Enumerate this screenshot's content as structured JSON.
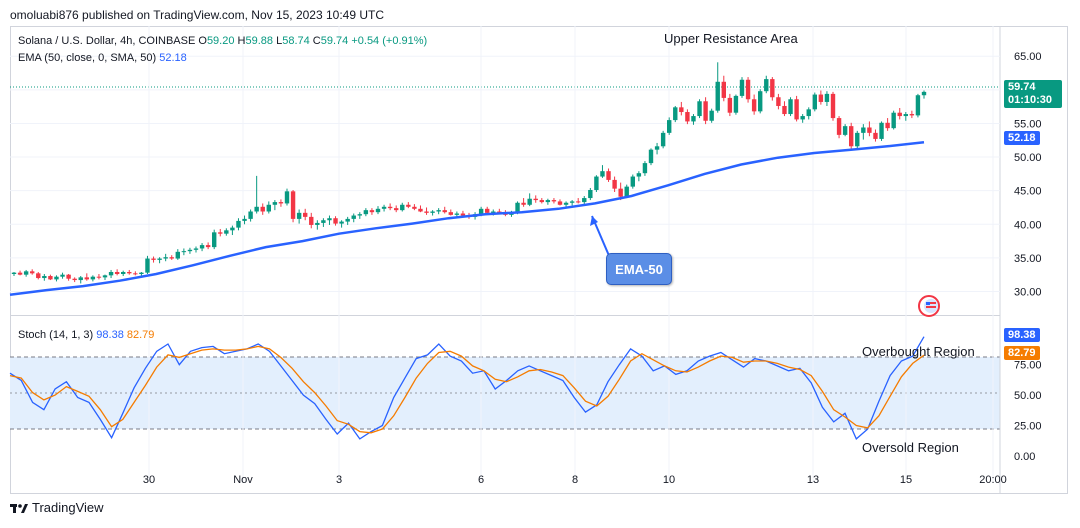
{
  "header": {
    "published": "omoluabi876 published on TradingView.com, Nov 15, 2023 10:49 UTC"
  },
  "symbol": {
    "name": "Solana / U.S. Dollar, 4h, COINBASE",
    "o_label": "O",
    "o": "59.20",
    "h_label": "H",
    "h": "59.88",
    "l_label": "L",
    "l": "58.74",
    "c_label": "C",
    "c": "59.74",
    "change": "+0.54 (+0.91%)"
  },
  "ema_legend": {
    "label": "EMA (50, close, 0, SMA, 50)",
    "value": "52.18"
  },
  "stoch_legend": {
    "label": "Stoch (14, 1, 3)",
    "k": "98.38",
    "d": "82.79"
  },
  "annotations": {
    "upper": "Upper Resistance Area",
    "ema_box": "EMA-50",
    "overbought": "Overbought Region",
    "oversold": "Oversold Region"
  },
  "price_tags": {
    "price": "59.74",
    "countdown": "01:10:30",
    "ema": "52.18"
  },
  "stoch_tags": {
    "k": "98.38",
    "d": "82.79"
  },
  "brand": "TradingView",
  "colors": {
    "up": "#089981",
    "down": "#f23645",
    "ema": "#2962ff",
    "k": "#2962ff",
    "d": "#f57c00",
    "band": "#e3effd"
  },
  "chart_data": [
    {
      "type": "candlestick",
      "title": "Solana / U.S. Dollar, 4h, COINBASE",
      "ylim": [
        26.5,
        69.5
      ],
      "y_ticks": [
        "65.00",
        "60.00",
        "55.00",
        "50.00",
        "45.00",
        "40.00",
        "35.00",
        "30.00"
      ],
      "x_ticks": [
        "30",
        "Nov",
        "3",
        "6",
        "8",
        "10",
        "13",
        "15",
        "20:00"
      ],
      "candles": [
        [
          32.6,
          32.9,
          32.3,
          32.8
        ],
        [
          32.8,
          33.1,
          32.4,
          32.5
        ],
        [
          32.5,
          33.2,
          32.2,
          33.0
        ],
        [
          33.0,
          33.3,
          32.5,
          32.7
        ],
        [
          32.7,
          32.9,
          31.8,
          32.0
        ],
        [
          32.0,
          32.6,
          31.6,
          32.3
        ],
        [
          32.3,
          32.5,
          31.7,
          31.8
        ],
        [
          31.8,
          32.4,
          31.5,
          32.2
        ],
        [
          32.2,
          32.8,
          31.9,
          32.5
        ],
        [
          32.5,
          32.6,
          31.6,
          31.9
        ],
        [
          31.9,
          32.1,
          31.4,
          31.7
        ],
        [
          31.7,
          32.3,
          31.2,
          32.1
        ],
        [
          32.1,
          32.7,
          31.6,
          31.8
        ],
        [
          31.8,
          32.4,
          31.5,
          32.2
        ],
        [
          32.2,
          32.6,
          31.8,
          32.1
        ],
        [
          32.1,
          32.5,
          31.7,
          32.4
        ],
        [
          32.4,
          33.2,
          32.0,
          32.9
        ],
        [
          32.9,
          33.3,
          32.4,
          32.6
        ],
        [
          32.6,
          33.1,
          32.3,
          32.9
        ],
        [
          32.9,
          33.2,
          32.5,
          32.7
        ],
        [
          32.7,
          33.0,
          32.4,
          32.6
        ],
        [
          32.6,
          32.9,
          32.3,
          32.8
        ],
        [
          32.8,
          35.3,
          32.6,
          34.9
        ],
        [
          34.9,
          35.2,
          34.3,
          34.7
        ],
        [
          34.7,
          35.1,
          34.2,
          34.9
        ],
        [
          34.9,
          35.6,
          34.5,
          35.1
        ],
        [
          35.1,
          35.4,
          34.7,
          34.9
        ],
        [
          34.9,
          36.3,
          34.7,
          35.9
        ],
        [
          35.9,
          36.4,
          35.4,
          36.0
        ],
        [
          36.0,
          36.5,
          35.6,
          36.2
        ],
        [
          36.2,
          36.7,
          35.8,
          36.4
        ],
        [
          36.4,
          37.2,
          36.0,
          36.9
        ],
        [
          36.9,
          37.3,
          36.3,
          36.6
        ],
        [
          36.6,
          39.2,
          36.3,
          38.8
        ],
        [
          38.8,
          39.3,
          38.2,
          38.6
        ],
        [
          38.6,
          39.4,
          38.3,
          39.1
        ],
        [
          39.1,
          39.8,
          38.4,
          39.5
        ],
        [
          39.5,
          40.9,
          39.1,
          40.5
        ],
        [
          40.5,
          41.3,
          40.0,
          40.8
        ],
        [
          40.8,
          42.2,
          40.4,
          41.9
        ],
        [
          41.9,
          47.2,
          41.6,
          42.6
        ],
        [
          42.6,
          43.1,
          41.4,
          41.9
        ],
        [
          41.9,
          43.4,
          41.6,
          42.9
        ],
        [
          42.9,
          43.6,
          42.1,
          43.3
        ],
        [
          43.3,
          43.7,
          42.6,
          43.1
        ],
        [
          43.1,
          45.3,
          42.8,
          44.9
        ],
        [
          44.9,
          45.1,
          40.3,
          40.8
        ],
        [
          40.8,
          42.2,
          40.1,
          41.7
        ],
        [
          41.7,
          42.3,
          40.6,
          41.1
        ],
        [
          41.1,
          41.7,
          39.4,
          39.9
        ],
        [
          39.9,
          40.6,
          39.2,
          40.2
        ],
        [
          40.2,
          40.9,
          39.6,
          40.6
        ],
        [
          40.6,
          41.3,
          39.9,
          40.9
        ],
        [
          40.9,
          41.2,
          39.8,
          40.1
        ],
        [
          40.1,
          40.6,
          39.5,
          40.4
        ],
        [
          40.4,
          41.1,
          39.9,
          40.8
        ],
        [
          40.8,
          41.6,
          40.3,
          41.3
        ],
        [
          41.3,
          41.8,
          40.8,
          41.5
        ],
        [
          41.5,
          42.4,
          41.2,
          42.1
        ],
        [
          42.1,
          42.4,
          41.4,
          41.8
        ],
        [
          41.8,
          42.7,
          41.5,
          42.3
        ],
        [
          42.3,
          42.9,
          41.9,
          42.6
        ],
        [
          42.6,
          43.1,
          42.1,
          42.4
        ],
        [
          42.4,
          42.8,
          41.8,
          42.1
        ],
        [
          42.1,
          43.2,
          41.9,
          42.9
        ],
        [
          42.9,
          43.3,
          42.4,
          42.6
        ],
        [
          42.6,
          43.0,
          42.1,
          42.3
        ],
        [
          42.3,
          42.8,
          41.8,
          41.9
        ],
        [
          41.9,
          42.5,
          41.4,
          41.7
        ],
        [
          41.7,
          42.1,
          41.3,
          41.9
        ],
        [
          41.9,
          42.4,
          41.5,
          42.1
        ],
        [
          42.1,
          42.6,
          41.6,
          41.8
        ],
        [
          41.8,
          42.2,
          41.3,
          41.4
        ],
        [
          41.4,
          41.9,
          40.9,
          41.6
        ],
        [
          41.6,
          42.0,
          41.1,
          41.3
        ],
        [
          41.3,
          41.7,
          40.8,
          41.1
        ],
        [
          41.1,
          41.8,
          40.7,
          41.5
        ],
        [
          41.5,
          42.6,
          41.2,
          42.3
        ],
        [
          42.3,
          42.6,
          41.4,
          41.7
        ],
        [
          41.7,
          42.2,
          41.3,
          41.9
        ],
        [
          41.9,
          42.3,
          41.5,
          41.7
        ],
        [
          41.7,
          42.1,
          41.2,
          41.4
        ],
        [
          41.4,
          42.0,
          41.1,
          41.8
        ],
        [
          41.8,
          43.4,
          41.5,
          43.2
        ],
        [
          43.2,
          43.9,
          42.6,
          42.9
        ],
        [
          42.9,
          44.6,
          42.7,
          43.8
        ],
        [
          43.8,
          44.3,
          43.2,
          43.6
        ],
        [
          43.6,
          43.9,
          43.1,
          43.3
        ],
        [
          43.3,
          43.8,
          42.9,
          43.6
        ],
        [
          43.6,
          43.9,
          43.1,
          43.4
        ],
        [
          43.4,
          43.7,
          42.8,
          42.9
        ],
        [
          42.9,
          43.4,
          42.6,
          43.2
        ],
        [
          43.2,
          43.6,
          42.8,
          43.4
        ],
        [
          43.4,
          43.9,
          43.1,
          43.3
        ],
        [
          43.3,
          44.2,
          43.0,
          43.9
        ],
        [
          43.9,
          45.4,
          43.6,
          45.1
        ],
        [
          45.1,
          47.3,
          44.8,
          47.1
        ],
        [
          47.1,
          48.8,
          46.9,
          47.9
        ],
        [
          47.9,
          48.3,
          46.3,
          46.6
        ],
        [
          46.6,
          47.1,
          44.8,
          45.3
        ],
        [
          45.3,
          46.2,
          43.6,
          44.1
        ],
        [
          44.1,
          45.9,
          43.9,
          45.6
        ],
        [
          45.6,
          47.4,
          45.3,
          47.1
        ],
        [
          47.1,
          47.9,
          46.4,
          47.6
        ],
        [
          47.6,
          49.4,
          47.2,
          49.1
        ],
        [
          49.1,
          51.3,
          48.8,
          51.1
        ],
        [
          51.1,
          52.1,
          50.4,
          51.6
        ],
        [
          51.6,
          53.9,
          51.3,
          53.6
        ],
        [
          53.6,
          55.9,
          53.3,
          55.5
        ],
        [
          55.5,
          57.6,
          55.2,
          57.4
        ],
        [
          57.4,
          58.2,
          56.2,
          56.7
        ],
        [
          56.7,
          57.1,
          54.9,
          55.3
        ],
        [
          55.3,
          56.4,
          54.8,
          56.1
        ],
        [
          56.1,
          58.6,
          55.8,
          58.3
        ],
        [
          58.3,
          58.9,
          54.9,
          55.4
        ],
        [
          55.4,
          57.2,
          55.1,
          56.9
        ],
        [
          56.9,
          64.1,
          56.6,
          61.2
        ],
        [
          61.2,
          62.1,
          58.3,
          58.8
        ],
        [
          58.8,
          59.4,
          56.1,
          56.6
        ],
        [
          56.6,
          59.3,
          56.3,
          59.1
        ],
        [
          59.1,
          61.9,
          58.8,
          61.5
        ],
        [
          61.5,
          61.9,
          58.1,
          58.6
        ],
        [
          58.6,
          59.3,
          56.3,
          56.8
        ],
        [
          56.8,
          60.1,
          56.5,
          59.8
        ],
        [
          59.8,
          62.1,
          59.5,
          61.6
        ],
        [
          61.6,
          61.9,
          58.4,
          58.9
        ],
        [
          58.9,
          59.4,
          57.1,
          57.6
        ],
        [
          57.6,
          58.3,
          56.1,
          56.4
        ],
        [
          56.4,
          58.9,
          56.1,
          58.6
        ],
        [
          58.6,
          59.1,
          55.3,
          55.6
        ],
        [
          55.6,
          56.4,
          55.1,
          56.1
        ],
        [
          56.1,
          57.4,
          55.6,
          57.1
        ],
        [
          57.1,
          59.6,
          56.8,
          59.3
        ],
        [
          59.3,
          59.9,
          57.8,
          58.2
        ],
        [
          58.2,
          59.8,
          57.6,
          59.4
        ],
        [
          59.4,
          59.7,
          55.4,
          55.8
        ],
        [
          55.8,
          56.1,
          52.8,
          53.3
        ],
        [
          53.3,
          54.9,
          53.1,
          54.6
        ],
        [
          54.6,
          55.1,
          51.2,
          51.6
        ],
        [
          51.6,
          53.9,
          51.3,
          53.6
        ],
        [
          53.6,
          54.9,
          52.6,
          54.4
        ],
        [
          54.4,
          55.3,
          53.1,
          53.6
        ],
        [
          53.6,
          54.1,
          52.3,
          52.7
        ],
        [
          52.7,
          55.3,
          52.4,
          55.1
        ],
        [
          55.1,
          55.8,
          53.9,
          54.3
        ],
        [
          54.3,
          56.9,
          54.1,
          56.6
        ],
        [
          56.6,
          57.3,
          55.6,
          56.1
        ],
        [
          56.1,
          56.7,
          55.4,
          56.4
        ],
        [
          56.4,
          56.9,
          55.8,
          56.2
        ],
        [
          56.2,
          59.4,
          55.9,
          59.2
        ],
        [
          59.2,
          59.9,
          58.7,
          59.7
        ]
      ],
      "ema50": [
        29.5,
        30.2,
        30.8,
        31.6,
        32.6,
        33.9,
        35.3,
        36.6,
        37.5,
        38.6,
        39.4,
        40.1,
        40.9,
        41.5,
        41.8,
        42.3,
        43.1,
        44.2,
        45.8,
        47.5,
        48.9,
        49.9,
        50.6,
        51.1,
        51.6,
        52.2
      ]
    },
    {
      "type": "line",
      "title": "Stoch (14, 1, 3)",
      "ylim": [
        -5,
        115
      ],
      "y_ticks": [
        "75.00",
        "50.00",
        "25.00",
        "0.00"
      ],
      "bands": {
        "upper": 80,
        "middle": 50,
        "lower": 20
      },
      "series": [
        {
          "name": "%K",
          "values": [
            68,
            62,
            44,
            38,
            55,
            61,
            48,
            44,
            30,
            15,
            35,
            56,
            72,
            86,
            92,
            75,
            86,
            89,
            90,
            84,
            86,
            88,
            92,
            86,
            74,
            62,
            50,
            43,
            30,
            18,
            27,
            14,
            20,
            25,
            48,
            64,
            80,
            83,
            92,
            82,
            78,
            68,
            70,
            55,
            62,
            70,
            74,
            70,
            66,
            62,
            48,
            36,
            42,
            61,
            75,
            88,
            82,
            70,
            74,
            67,
            70,
            78,
            82,
            85,
            79,
            73,
            80,
            78,
            74,
            70,
            72,
            60,
            40,
            28,
            35,
            14,
            22,
            45,
            66,
            78,
            82,
            98
          ]
        },
        {
          "name": "%D",
          "values": [
            66,
            64,
            52,
            46,
            50,
            57,
            53,
            49,
            38,
            24,
            30,
            44,
            58,
            73,
            83,
            81,
            84,
            87,
            88,
            87,
            87,
            88,
            90,
            88,
            81,
            72,
            61,
            52,
            41,
            29,
            26,
            20,
            19,
            22,
            33,
            48,
            64,
            76,
            85,
            86,
            82,
            74,
            70,
            63,
            61,
            65,
            70,
            71,
            69,
            66,
            56,
            45,
            41,
            49,
            63,
            78,
            84,
            79,
            74,
            70,
            69,
            73,
            78,
            82,
            81,
            77,
            78,
            78,
            76,
            73,
            71,
            66,
            53,
            38,
            32,
            25,
            23,
            33,
            49,
            65,
            76,
            82.79
          ]
        }
      ]
    }
  ]
}
